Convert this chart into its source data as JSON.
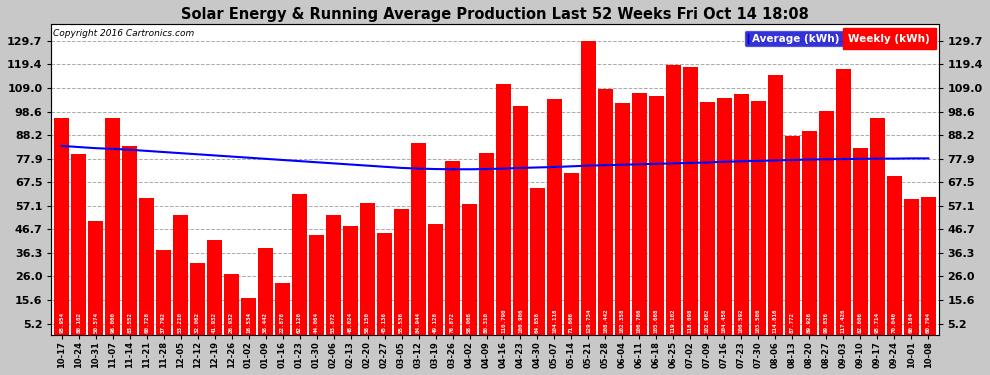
{
  "title": "Solar Energy & Running Average Production Last 52 Weeks Fri Oct 14 18:08",
  "copyright": "Copyright 2016 Cartronics.com",
  "bar_color": "#FF0000",
  "avg_line_color": "#0000FF",
  "plot_bg_color": "#FFFFFF",
  "fig_bg_color": "#C8C8C8",
  "yticks": [
    5.2,
    15.6,
    26.0,
    36.3,
    46.7,
    57.1,
    67.5,
    77.9,
    88.2,
    98.6,
    109.0,
    119.4,
    129.7
  ],
  "ylim": [
    0,
    135
  ],
  "categories": [
    "10-17",
    "10-24",
    "10-31",
    "11-07",
    "11-14",
    "11-21",
    "11-28",
    "12-05",
    "12-12",
    "12-19",
    "12-26",
    "01-02",
    "01-09",
    "01-16",
    "01-23",
    "01-30",
    "02-06",
    "02-13",
    "02-20",
    "02-27",
    "03-05",
    "03-12",
    "03-19",
    "03-26",
    "04-02",
    "04-09",
    "04-16",
    "04-23",
    "04-30",
    "05-07",
    "05-14",
    "05-21",
    "05-28",
    "06-04",
    "06-11",
    "06-18",
    "06-25",
    "07-02",
    "07-09",
    "07-16",
    "07-23",
    "07-30",
    "08-06",
    "08-13",
    "08-20",
    "08-27",
    "09-03",
    "09-10",
    "09-17",
    "09-24",
    "10-01",
    "10-08"
  ],
  "bar_values": [
    95.954,
    80.102,
    50.574,
    96.0,
    83.552,
    60.728,
    37.792,
    53.21,
    32.062,
    41.932,
    26.932,
    16.534,
    38.442,
    22.878,
    62.12,
    44.064,
    53.072,
    48.024,
    58.15,
    45.136,
    55.536,
    84.944,
    49.128,
    76.872,
    58.008,
    80.31,
    110.79,
    100.906,
    64.858,
    104.118,
    71.606,
    129.734,
    108.442,
    102.358,
    106.766,
    105.668,
    119.102,
    118.098,
    102.902,
    104.456,
    106.592,
    103.506,
    114.816,
    87.772,
    89.926,
    99.036,
    117.426,
    82.606,
    95.714,
    70.04,
    60.164,
    60.794
  ],
  "avg_values": [
    83.5,
    83.0,
    82.5,
    82.2,
    81.8,
    81.3,
    80.8,
    80.3,
    79.8,
    79.3,
    78.8,
    78.3,
    77.8,
    77.3,
    76.8,
    76.3,
    75.8,
    75.3,
    74.8,
    74.3,
    73.8,
    73.5,
    73.3,
    73.2,
    73.2,
    73.3,
    73.5,
    73.8,
    74.0,
    74.2,
    74.5,
    74.8,
    75.0,
    75.2,
    75.4,
    75.6,
    75.8,
    76.0,
    76.2,
    76.5,
    76.7,
    76.9,
    77.1,
    77.3,
    77.5,
    77.6,
    77.7,
    77.8,
    77.9,
    77.9,
    78.0,
    78.0
  ],
  "legend_avg_color": "#0000CD",
  "legend_weekly_color": "#FF0000",
  "legend_avg_label": "Average (kWh)",
  "legend_weekly_label": "Weekly (kWh)"
}
